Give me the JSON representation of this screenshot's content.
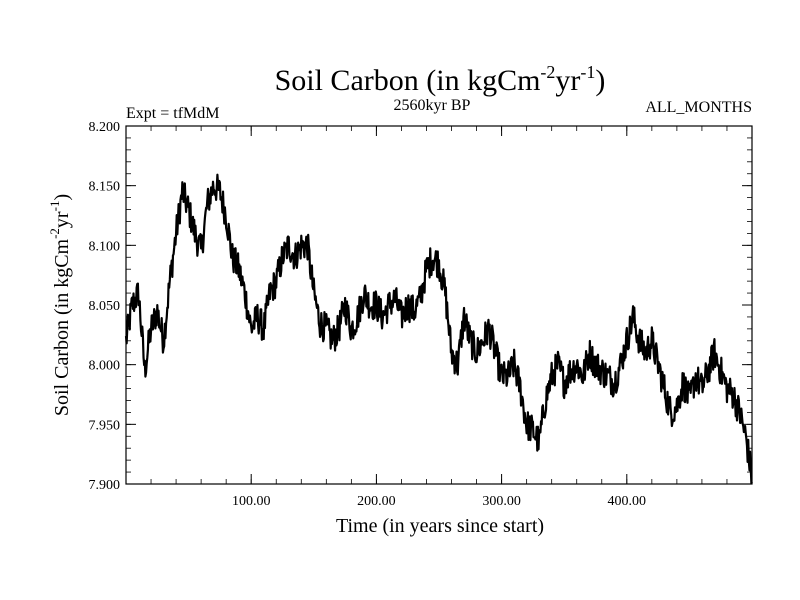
{
  "chart_data": {
    "type": "line",
    "title": "Soil Carbon (in kgCm",
    "title_sup1": "-2",
    "title_mid": "yr",
    "title_sup2": "-1",
    "title_end": ")",
    "left_label": "Expt = tfMdM",
    "center_label": "2560kyr BP",
    "right_label": "ALL_MONTHS",
    "xlabel": "Time (in years since start)",
    "ylabel": "Soil Carbon (in kgCm",
    "ylabel_sup1": "-2",
    "ylabel_mid": "yr",
    "ylabel_sup2": "-1",
    "ylabel_end": ")",
    "xlim": [
      0,
      500
    ],
    "ylim": [
      7.9,
      8.2
    ],
    "xticks": [
      100,
      200,
      300,
      400
    ],
    "xtick_labels": [
      "100.00",
      "200.00",
      "300.00",
      "400.00"
    ],
    "yticks": [
      7.9,
      7.95,
      8.0,
      8.05,
      8.1,
      8.15,
      8.2
    ],
    "ytick_labels": [
      "7.900",
      "7.950",
      "8.000",
      "8.050",
      "8.100",
      "8.150",
      "8.200"
    ],
    "series": [
      {
        "name": "Soil Carbon",
        "x": [
          0,
          5,
          10,
          15,
          20,
          25,
          30,
          35,
          40,
          45,
          50,
          55,
          60,
          65,
          70,
          75,
          80,
          85,
          90,
          95,
          100,
          105,
          110,
          115,
          120,
          125,
          130,
          135,
          140,
          145,
          150,
          155,
          160,
          165,
          170,
          175,
          180,
          185,
          190,
          195,
          200,
          205,
          210,
          215,
          220,
          225,
          230,
          235,
          240,
          245,
          250,
          255,
          260,
          265,
          270,
          275,
          280,
          285,
          290,
          295,
          300,
          305,
          310,
          315,
          320,
          325,
          330,
          335,
          340,
          345,
          350,
          355,
          360,
          365,
          370,
          375,
          380,
          385,
          390,
          395,
          400,
          405,
          410,
          415,
          420,
          425,
          430,
          435,
          440,
          445,
          450,
          455,
          460,
          465,
          470,
          475,
          480,
          485,
          490,
          495,
          500
        ],
        "values": [
          8.02,
          8.05,
          8.06,
          7.995,
          8.03,
          8.045,
          8.02,
          8.07,
          8.11,
          8.145,
          8.13,
          8.11,
          8.095,
          8.135,
          8.15,
          8.145,
          8.125,
          8.09,
          8.08,
          8.06,
          8.03,
          8.04,
          8.03,
          8.06,
          8.07,
          8.09,
          8.1,
          8.09,
          8.1,
          8.1,
          8.06,
          8.035,
          8.03,
          8.02,
          8.03,
          8.05,
          8.03,
          8.04,
          8.06,
          8.05,
          8.05,
          8.04,
          8.05,
          8.055,
          8.04,
          8.05,
          8.045,
          8.055,
          8.08,
          8.09,
          8.085,
          8.06,
          8.01,
          8.0,
          8.04,
          8.02,
          8.01,
          8.02,
          8.03,
          8.01,
          7.99,
          7.99,
          8.0,
          7.98,
          7.95,
          7.945,
          7.935,
          7.97,
          7.99,
          8.0,
          7.985,
          7.995,
          8.0,
          7.99,
          8.01,
          8.0,
          7.995,
          7.99,
          7.985,
          8.0,
          8.02,
          8.04,
          8.02,
          8.01,
          8.02,
          8.0,
          7.98,
          7.96,
          7.965,
          7.985,
          7.97,
          7.99,
          7.98,
          7.995,
          8.01,
          7.995,
          7.98,
          7.975,
          7.96,
          7.94,
          7.905
        ]
      }
    ]
  }
}
